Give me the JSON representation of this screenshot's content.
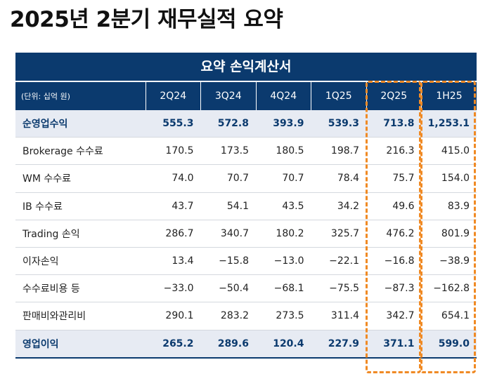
{
  "title": "2025년 2분기 재무실적 요약",
  "table": {
    "banner": "요약 손익계산서",
    "unit_label": "(단위: 십억 원)",
    "columns": [
      "2Q24",
      "3Q24",
      "4Q24",
      "1Q25",
      "2Q25",
      "1H25"
    ],
    "rows": [
      {
        "label": "순영업수익",
        "values": [
          "555.3",
          "572.8",
          "393.9",
          "539.3",
          "713.8",
          "1,253.1"
        ],
        "highlight": true
      },
      {
        "label": "Brokerage 수수료",
        "values": [
          "170.5",
          "173.5",
          "180.5",
          "198.7",
          "216.3",
          "415.0"
        ],
        "highlight": false
      },
      {
        "label": "WM 수수료",
        "values": [
          "74.0",
          "70.7",
          "70.7",
          "78.4",
          "75.7",
          "154.0"
        ],
        "highlight": false
      },
      {
        "label": "IB 수수료",
        "values": [
          "43.7",
          "54.1",
          "43.5",
          "34.2",
          "49.6",
          "83.9"
        ],
        "highlight": false
      },
      {
        "label": "Trading 손익",
        "values": [
          "286.7",
          "340.7",
          "180.2",
          "325.7",
          "476.2",
          "801.9"
        ],
        "highlight": false
      },
      {
        "label": "이자손익",
        "values": [
          "13.4",
          "−15.8",
          "−13.0",
          "−22.1",
          "−16.8",
          "−38.9"
        ],
        "highlight": false
      },
      {
        "label": "수수료비용 등",
        "values": [
          "−33.0",
          "−50.4",
          "−68.1",
          "−75.5",
          "−87.3",
          "−162.8"
        ],
        "highlight": false
      },
      {
        "label": "판매비와관리비",
        "values": [
          "290.1",
          "283.2",
          "273.5",
          "311.4",
          "342.7",
          "654.1"
        ],
        "highlight": false
      },
      {
        "label": "영업이익",
        "values": [
          "265.2",
          "289.6",
          "120.4",
          "227.9",
          "371.1",
          "599.0"
        ],
        "highlight": true
      }
    ]
  },
  "colors": {
    "header_bg": "#0b3a6e",
    "highlight_bg": "#e7ebf3",
    "dash": "#f08a24"
  }
}
